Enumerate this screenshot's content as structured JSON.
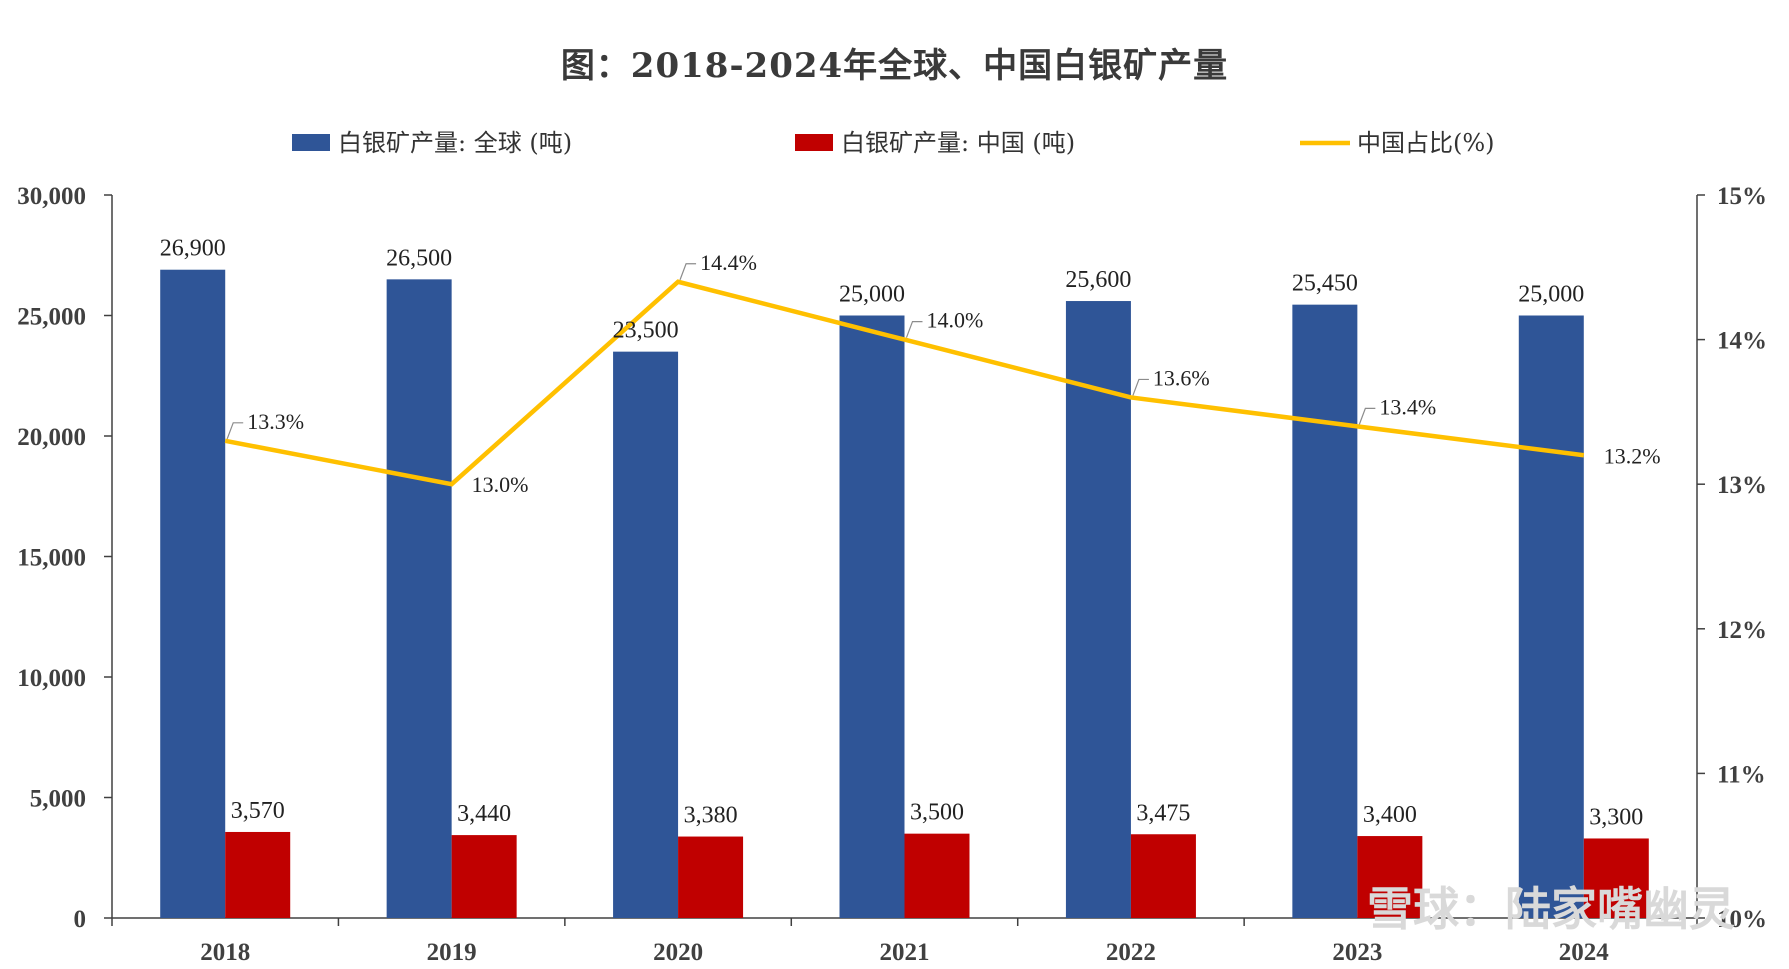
{
  "chart_data": {
    "type": "bar",
    "title": "图：2018-2024年全球、中国白银矿产量",
    "categories": [
      "2018",
      "2019",
      "2020",
      "2021",
      "2022",
      "2023",
      "2024"
    ],
    "series": [
      {
        "name": "白银矿产量: 全球 (吨)",
        "type": "bar",
        "axis": "left",
        "color": "#2f5597",
        "values": [
          26900,
          26500,
          23500,
          25000,
          25600,
          25450,
          25000
        ],
        "labels": [
          "26,900",
          "26,500",
          "23,500",
          "25,000",
          "25,600",
          "25,450",
          "25,000"
        ]
      },
      {
        "name": "白银矿产量: 中国 (吨)",
        "type": "bar",
        "axis": "left",
        "color": "#c00000",
        "values": [
          3570,
          3440,
          3380,
          3500,
          3475,
          3400,
          3300
        ],
        "labels": [
          "3,570",
          "3,440",
          "3,380",
          "3,500",
          "3,475",
          "3,400",
          "3,300"
        ]
      },
      {
        "name": "中国占比(%)",
        "type": "line",
        "axis": "right",
        "color": "#ffc000",
        "values": [
          13.3,
          13.0,
          14.4,
          14.0,
          13.6,
          13.4,
          13.2
        ],
        "labels": [
          "13.3%",
          "13.0%",
          "14.4%",
          "14.0%",
          "13.6%",
          "13.4%",
          "13.2%"
        ]
      }
    ],
    "ylim_left": [
      0,
      30000
    ],
    "yticks_left": [
      "0",
      "5,000",
      "10,000",
      "15,000",
      "20,000",
      "25,000",
      "30,000"
    ],
    "ylim_right": [
      10,
      15
    ],
    "yticks_right": [
      "10%",
      "11%",
      "12%",
      "13%",
      "14%",
      "15%"
    ],
    "legend_position": "top",
    "grid": false
  },
  "watermark": "雪球：陆家嘴幽灵"
}
